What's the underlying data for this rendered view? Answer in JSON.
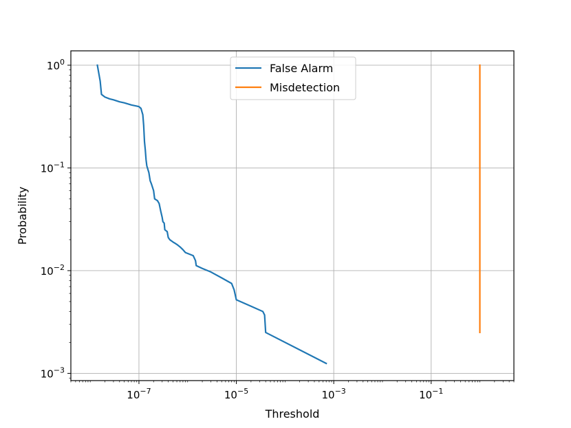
{
  "chart_data": {
    "type": "line",
    "title": "",
    "xlabel": "Threshold",
    "ylabel": "Probability",
    "xscale": "log",
    "yscale": "log",
    "xlim": [
      4e-09,
      5
    ],
    "ylim": [
      0.00085,
      1.38
    ],
    "grid": true,
    "legend_position": "top-center",
    "x_ticks": [
      {
        "value": 1e-07,
        "base": "10",
        "exp": "−7"
      },
      {
        "value": 1e-05,
        "base": "10",
        "exp": "−5"
      },
      {
        "value": 0.001,
        "base": "10",
        "exp": "−3"
      },
      {
        "value": 0.1,
        "base": "10",
        "exp": "−1"
      }
    ],
    "y_ticks": [
      {
        "value": 1,
        "base": "10",
        "exp": "0"
      },
      {
        "value": 0.1,
        "base": "10",
        "exp": "−1"
      },
      {
        "value": 0.01,
        "base": "10",
        "exp": "−2"
      },
      {
        "value": 0.001,
        "base": "10",
        "exp": "−3"
      }
    ],
    "series": [
      {
        "name": "False Alarm",
        "color": "#1f77b4",
        "points": [
          [
            1.4e-08,
            1.0
          ],
          [
            1.6e-08,
            0.7
          ],
          [
            1.7e-08,
            0.52
          ],
          [
            2e-08,
            0.49
          ],
          [
            2.5e-08,
            0.47
          ],
          [
            3e-08,
            0.46
          ],
          [
            4e-08,
            0.44
          ],
          [
            5e-08,
            0.43
          ],
          [
            7e-08,
            0.41
          ],
          [
            9e-08,
            0.4
          ],
          [
            1e-07,
            0.395
          ],
          [
            1.1e-07,
            0.38
          ],
          [
            1.2e-07,
            0.33
          ],
          [
            1.25e-07,
            0.26
          ],
          [
            1.3e-07,
            0.18
          ],
          [
            1.35e-07,
            0.15
          ],
          [
            1.4e-07,
            0.12
          ],
          [
            1.45e-07,
            0.105
          ],
          [
            1.6e-07,
            0.09
          ],
          [
            1.7e-07,
            0.075
          ],
          [
            1.8e-07,
            0.07
          ],
          [
            2e-07,
            0.06
          ],
          [
            2.1e-07,
            0.05
          ],
          [
            2.4e-07,
            0.048
          ],
          [
            2.6e-07,
            0.045
          ],
          [
            2.8e-07,
            0.038
          ],
          [
            3e-07,
            0.033
          ],
          [
            3.1e-07,
            0.03
          ],
          [
            3.3e-07,
            0.029
          ],
          [
            3.4e-07,
            0.025
          ],
          [
            3.8e-07,
            0.024
          ],
          [
            4e-07,
            0.021
          ],
          [
            4.3e-07,
            0.02
          ],
          [
            5e-07,
            0.019
          ],
          [
            6e-07,
            0.018
          ],
          [
            7e-07,
            0.017
          ],
          [
            8e-07,
            0.016
          ],
          [
            9e-07,
            0.015
          ],
          [
            1.3e-06,
            0.014
          ],
          [
            1.45e-06,
            0.0125
          ],
          [
            1.5e-06,
            0.0112
          ],
          [
            2e-06,
            0.0105
          ],
          [
            3e-06,
            0.0097
          ],
          [
            5e-06,
            0.0085
          ],
          [
            8e-06,
            0.0075
          ],
          [
            9e-06,
            0.0065
          ],
          [
            1e-05,
            0.0052
          ],
          [
            2e-05,
            0.0045
          ],
          [
            3.5e-05,
            0.004
          ],
          [
            3.8e-05,
            0.0037
          ],
          [
            4e-05,
            0.0025
          ],
          [
            0.0007,
            0.00125
          ]
        ]
      },
      {
        "name": "Misdetection",
        "color": "#ff7f0e",
        "points": [
          [
            1.0,
            1.0
          ],
          [
            1.0,
            0.0025
          ]
        ]
      }
    ]
  }
}
